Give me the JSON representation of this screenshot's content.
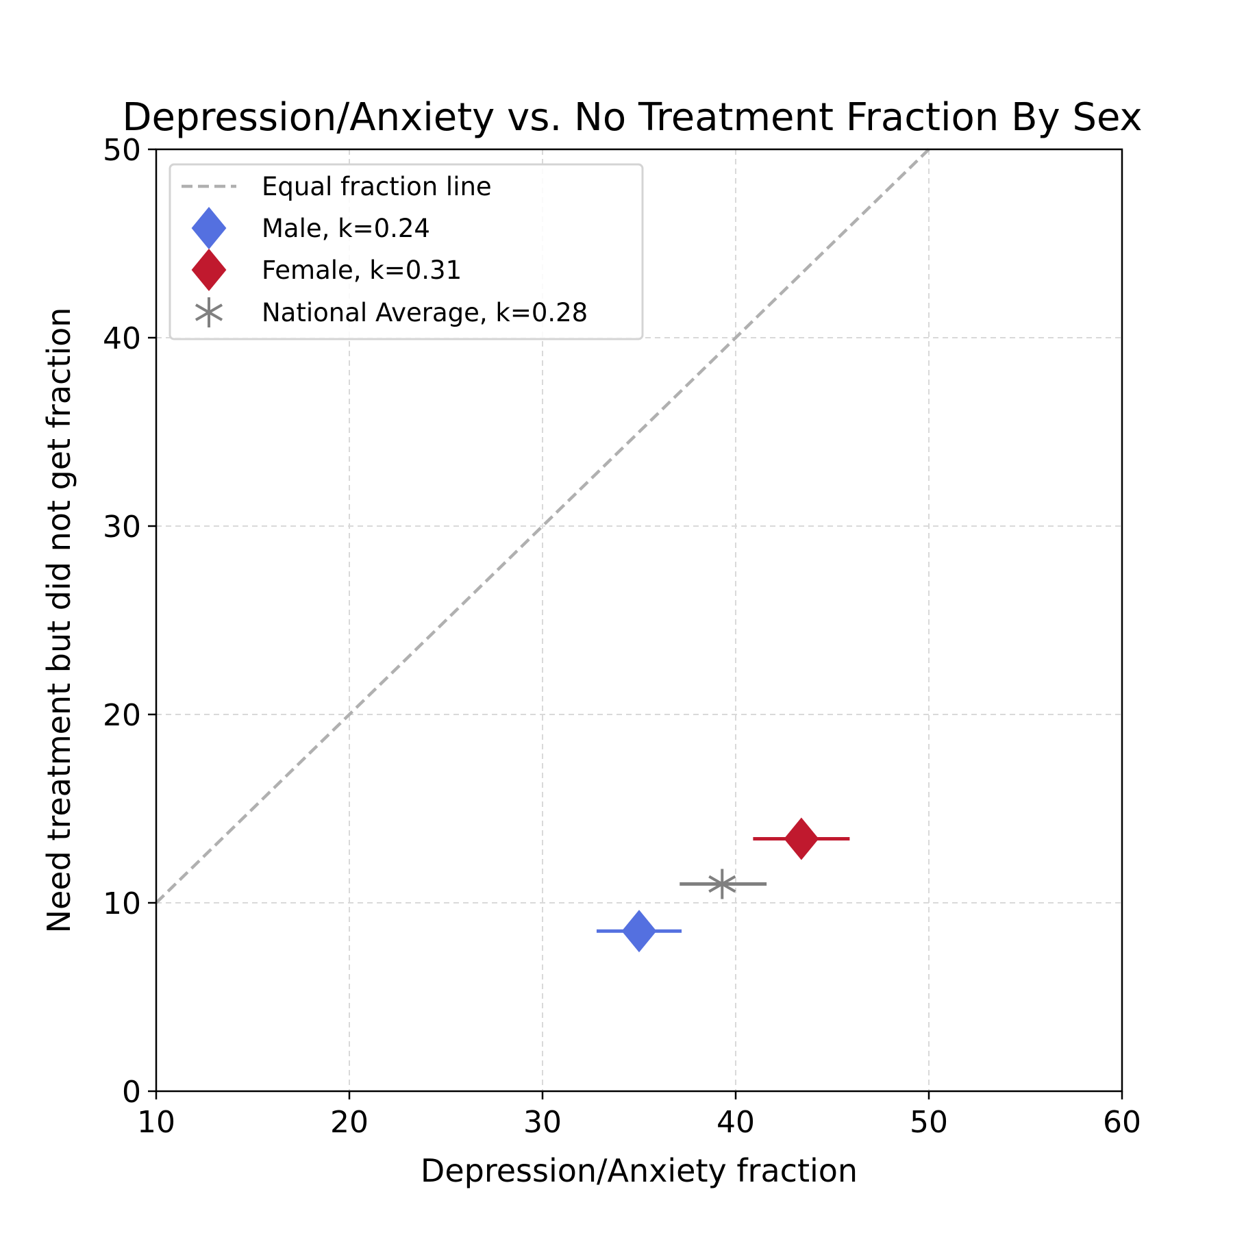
{
  "chart_data": {
    "type": "scatter",
    "title": "Depression/Anxiety vs. No Treatment Fraction By Sex",
    "xlabel": "Depression/Anxiety fraction",
    "ylabel": "Need treatment but did not get fraction",
    "xlim": [
      10,
      60
    ],
    "ylim": [
      0,
      50
    ],
    "xticks": [
      10,
      20,
      30,
      40,
      50,
      60
    ],
    "yticks": [
      0,
      10,
      20,
      30,
      40,
      50
    ],
    "grid": true,
    "legend_position": "upper-left",
    "reference_line": {
      "label": "Equal fraction line",
      "x": [
        10,
        50
      ],
      "y": [
        10,
        50
      ],
      "style": "dashed",
      "color": "#b0b0b0"
    },
    "series": [
      {
        "name": "Male, k=0.24",
        "marker": "diamond",
        "color": "#5470e0",
        "x": 35.0,
        "y": 8.5,
        "xerr": [
          32.8,
          37.2
        ]
      },
      {
        "name": "Female, k=0.31",
        "marker": "diamond",
        "color": "#c0192e",
        "x": 43.4,
        "y": 13.4,
        "xerr": [
          40.9,
          45.9
        ]
      },
      {
        "name": "National Average, k=0.28",
        "marker": "asterisk",
        "color": "#808080",
        "x": 39.3,
        "y": 11.0,
        "xerr": [
          37.1,
          41.6
        ]
      }
    ]
  }
}
